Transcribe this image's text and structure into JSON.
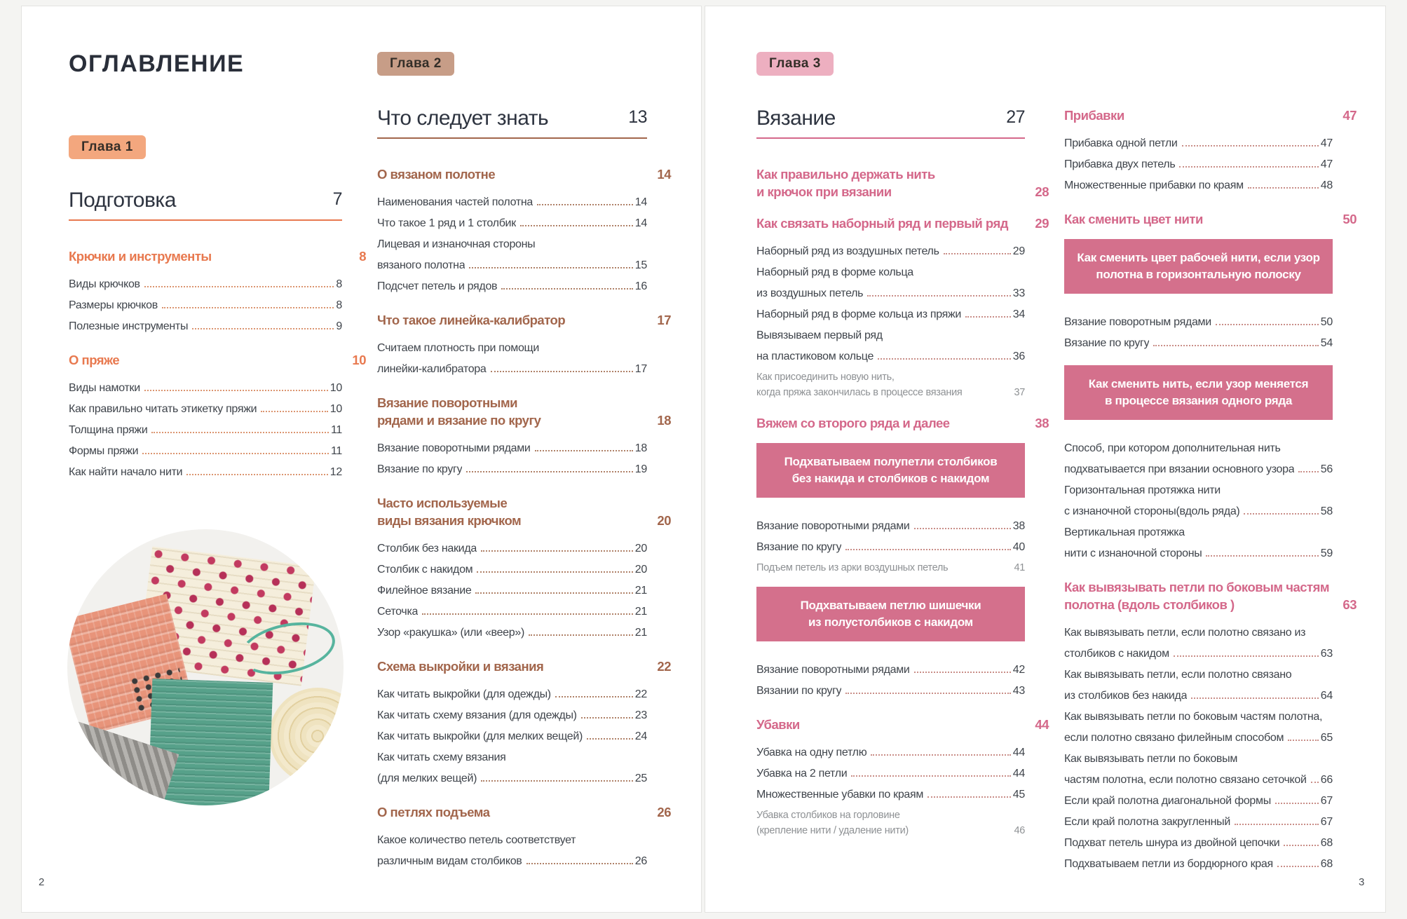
{
  "doc": {
    "title": "ОГЛАВЛЕНИЕ"
  },
  "footer": {
    "left_page_number": "2",
    "right_page_number": "3"
  },
  "colors": {
    "title_text": "#2A2F3A",
    "heading_text": "#2E3440",
    "entry_text": "#3F444B",
    "muted_text": "#8E9194",
    "badge_text": "#342E28",
    "page_bg": "#FFFFFF",
    "canvas_bg": "#F4F4F2"
  },
  "columns": [
    {
      "key": "colA",
      "accent": "#E8794F",
      "badge_bg": "#F3A77E",
      "dots": "#DB9570",
      "banner_bg": "#D4708C",
      "blocks": [
        {
          "type": "badge",
          "text": "Глава 1"
        },
        {
          "type": "heading",
          "text": "Подготовка",
          "page": "7"
        },
        {
          "type": "subhead",
          "lines": [
            "Крючки и инструменты"
          ],
          "page": "8"
        },
        {
          "type": "entry",
          "lines": [
            "Виды крючков"
          ],
          "page": "8"
        },
        {
          "type": "entry",
          "lines": [
            "Размеры крючков"
          ],
          "page": "8"
        },
        {
          "type": "entry",
          "lines": [
            "Полезные инструменты"
          ],
          "page": "9"
        },
        {
          "type": "subhead",
          "lines": [
            "О пряже"
          ],
          "page": "10"
        },
        {
          "type": "entry",
          "lines": [
            "Виды намотки"
          ],
          "page": "10"
        },
        {
          "type": "entry",
          "lines": [
            "Как правильно читать этикетку пряжи"
          ],
          "page": "10"
        },
        {
          "type": "entry",
          "lines": [
            "Толщина пряжи"
          ],
          "page": "11"
        },
        {
          "type": "entry",
          "lines": [
            "Формы пряжи"
          ],
          "page": "11"
        },
        {
          "type": "entry",
          "lines": [
            "Как найти начало нити"
          ],
          "page": "12"
        },
        {
          "type": "photo"
        }
      ]
    },
    {
      "key": "colB",
      "accent": "#A2664C",
      "badge_bg": "#C79D87",
      "dots": "#AF8168",
      "banner_bg": "#D4708C",
      "blocks": [
        {
          "type": "badge",
          "text": "Глава 2"
        },
        {
          "type": "heading",
          "text": "Что следует знать",
          "page": "13"
        },
        {
          "type": "subhead",
          "lines": [
            "О вязаном полотне"
          ],
          "page": "14"
        },
        {
          "type": "entry",
          "lines": [
            "Наименования частей полотна"
          ],
          "page": "14"
        },
        {
          "type": "entry",
          "lines": [
            "Что такое 1 ряд и 1 столбик"
          ],
          "page": "14"
        },
        {
          "type": "entry",
          "lines": [
            "Лицевая и изнаночная стороны",
            "вязаного полотна"
          ],
          "page": "15"
        },
        {
          "type": "entry",
          "lines": [
            "Подсчет петель и рядов"
          ],
          "page": "16"
        },
        {
          "type": "subhead",
          "lines": [
            "Что такое линейка-калибратор"
          ],
          "page": "17"
        },
        {
          "type": "entry",
          "lines": [
            "Считаем плотность при помощи",
            "линейки-калибратора"
          ],
          "page": "17"
        },
        {
          "type": "subhead",
          "lines": [
            "Вязание поворотными",
            "рядами и вязание по кругу"
          ],
          "page": "18"
        },
        {
          "type": "entry",
          "lines": [
            "Вязание поворотными рядами"
          ],
          "page": "18"
        },
        {
          "type": "entry",
          "lines": [
            "Вязание по кругу"
          ],
          "page": "19"
        },
        {
          "type": "subhead",
          "lines": [
            "Часто используемые",
            "виды вязания крючком"
          ],
          "page": "20"
        },
        {
          "type": "entry",
          "lines": [
            "Столбик без накида"
          ],
          "page": "20"
        },
        {
          "type": "entry",
          "lines": [
            "Столбик с накидом"
          ],
          "page": "20"
        },
        {
          "type": "entry",
          "lines": [
            "Филейное вязание"
          ],
          "page": "21"
        },
        {
          "type": "entry",
          "lines": [
            "Сеточка"
          ],
          "page": "21"
        },
        {
          "type": "entry",
          "lines": [
            "Узор «ракушка» (или «веер»)"
          ],
          "page": "21"
        },
        {
          "type": "subhead",
          "lines": [
            "Схема выкройки и вязания"
          ],
          "page": "22"
        },
        {
          "type": "entry",
          "lines": [
            "Как читать выкройки (для одежды)"
          ],
          "page": "22"
        },
        {
          "type": "entry",
          "lines": [
            "Как читать схему вязания (для одежды)"
          ],
          "page": "23"
        },
        {
          "type": "entry",
          "lines": [
            "Как читать выкройки (для мелких вещей)"
          ],
          "page": "24"
        },
        {
          "type": "entry",
          "lines": [
            "Как читать схему вязания",
            "(для мелких вещей)"
          ],
          "page": "25"
        },
        {
          "type": "subhead",
          "lines": [
            "О петлях подъема"
          ],
          "page": "26"
        },
        {
          "type": "entry",
          "lines": [
            "Какое количество петель соответствует",
            "различным видам столбиков"
          ],
          "page": "26"
        }
      ]
    },
    {
      "key": "colC",
      "accent": "#D4688A",
      "badge_bg": "#EDAFC0",
      "dots": "#C98E88",
      "banner_bg": "#D4708C",
      "blocks": [
        {
          "type": "badge",
          "text": "Глава 3"
        },
        {
          "type": "heading",
          "text": "Вязание",
          "page": "27"
        },
        {
          "type": "subhead",
          "lines": [
            "Как правильно держать нить",
            "и крючок при вязании"
          ],
          "page": "28"
        },
        {
          "type": "subhead",
          "lines": [
            "Как связать наборный ряд и первый ряд"
          ],
          "page": "29"
        },
        {
          "type": "entry",
          "lines": [
            "Наборный ряд из воздушных петель"
          ],
          "page": "29"
        },
        {
          "type": "entry",
          "lines": [
            "Наборный ряд в форме кольца",
            "из воздушных петель"
          ],
          "page": "33"
        },
        {
          "type": "entry",
          "lines": [
            "Наборный ряд в форме кольца из пряжи"
          ],
          "page": "34"
        },
        {
          "type": "entry",
          "lines": [
            "Вывязываем первый ряд",
            "на пластиковом кольце"
          ],
          "page": "36"
        },
        {
          "type": "subentry",
          "lines": [
            "Как присоединить новую нить,",
            "когда пряжа закончилась в процессе вязания"
          ],
          "page": "37"
        },
        {
          "type": "subhead",
          "lines": [
            "Вяжем со второго ряда и далее"
          ],
          "page": "38"
        },
        {
          "type": "banner",
          "lines": [
            "Подхватываем полупетли столбиков",
            "без накида и столбиков с накидом"
          ]
        },
        {
          "type": "entry",
          "lines": [
            "Вязание поворотными рядами"
          ],
          "page": "38"
        },
        {
          "type": "entry",
          "lines": [
            "Вязание по кругу"
          ],
          "page": "40"
        },
        {
          "type": "subentry",
          "lines": [
            "Подъем петель из арки воздушных петель"
          ],
          "page": "41"
        },
        {
          "type": "banner",
          "lines": [
            "Подхватываем петлю шишечки",
            "из полустолбиков с накидом"
          ]
        },
        {
          "type": "entry",
          "lines": [
            "Вязание поворотными рядами"
          ],
          "page": "42"
        },
        {
          "type": "entry",
          "lines": [
            "Вязании по кругу"
          ],
          "page": "43"
        },
        {
          "type": "subhead",
          "lines": [
            "Убавки"
          ],
          "page": "44"
        },
        {
          "type": "entry",
          "lines": [
            "Убавка на одну петлю"
          ],
          "page": "44"
        },
        {
          "type": "entry",
          "lines": [
            "Убавка на 2 петли"
          ],
          "page": "44"
        },
        {
          "type": "entry",
          "lines": [
            "Множественные убавки по краям"
          ],
          "page": "45"
        },
        {
          "type": "subentry",
          "lines": [
            "Убавка столбиков на горловине",
            "(крепление нити / удаление нити)"
          ],
          "page": "46"
        }
      ]
    },
    {
      "key": "colD",
      "accent": "#D4688A",
      "badge_bg": "#EDAFC0",
      "dots": "#C98E88",
      "banner_bg": "#D4708C",
      "blocks": [
        {
          "type": "subhead",
          "lines": [
            "Прибавки"
          ],
          "page": "47"
        },
        {
          "type": "entry",
          "lines": [
            "Прибавка одной петли"
          ],
          "page": "47"
        },
        {
          "type": "entry",
          "lines": [
            "Прибавка двух петель"
          ],
          "page": "47"
        },
        {
          "type": "entry",
          "lines": [
            "Множественные прибавки по краям"
          ],
          "page": "48"
        },
        {
          "type": "subhead",
          "lines": [
            "Как сменить цвет нити"
          ],
          "page": "50"
        },
        {
          "type": "banner",
          "lines": [
            "Как сменить цвет рабочей нити, если узор",
            "полотна в горизонтальную полоску"
          ]
        },
        {
          "type": "entry",
          "lines": [
            "Вязание поворотным рядами"
          ],
          "page": "50"
        },
        {
          "type": "entry",
          "lines": [
            "Вязание по кругу"
          ],
          "page": "54"
        },
        {
          "type": "banner",
          "lines": [
            "Как сменить нить, если узор меняется",
            "в процессе вязания одного ряда"
          ]
        },
        {
          "type": "entry",
          "lines": [
            "Способ, при котором дополнительная нить",
            "подхватывается при вязании основного узора"
          ],
          "page": "56"
        },
        {
          "type": "entry",
          "lines": [
            "Горизонтальная протяжка нити",
            "с изнаночной стороны(вдоль ряда)"
          ],
          "page": "58"
        },
        {
          "type": "entry",
          "lines": [
            "Вертикальная протяжка",
            "нити с изнаночной стороны"
          ],
          "page": "59"
        },
        {
          "type": "subhead",
          "lines": [
            "Как вывязывать петли по боковым частям",
            "полотна (вдоль столбиков )"
          ],
          "page": "63"
        },
        {
          "type": "entry",
          "lines": [
            "Как вывязывать петли, если полотно связано из",
            "столбиков с накидом"
          ],
          "page": "63"
        },
        {
          "type": "entry",
          "lines": [
            "Как вывязывать петли, если полотно связано",
            "из столбиков без накида"
          ],
          "page": "64"
        },
        {
          "type": "entry",
          "lines": [
            "Как вывязывать петли по боковым частям полотна,",
            "если полотно связано филейным способом"
          ],
          "page": "65"
        },
        {
          "type": "entry",
          "lines": [
            "Как вывязывать петли по боковым",
            "частям полотна, если полотно связано сеточкой"
          ],
          "page": "66"
        },
        {
          "type": "entry",
          "lines": [
            "Если край полотна диагональной формы"
          ],
          "page": "67"
        },
        {
          "type": "entry",
          "lines": [
            "Если край полотна закругленный"
          ],
          "page": "67"
        },
        {
          "type": "entry",
          "lines": [
            "Подхват петель шнура из двойной цепочки"
          ],
          "page": "68"
        },
        {
          "type": "entry",
          "lines": [
            "Подхватываем петли из бордюрного края"
          ],
          "page": "68"
        }
      ]
    }
  ]
}
